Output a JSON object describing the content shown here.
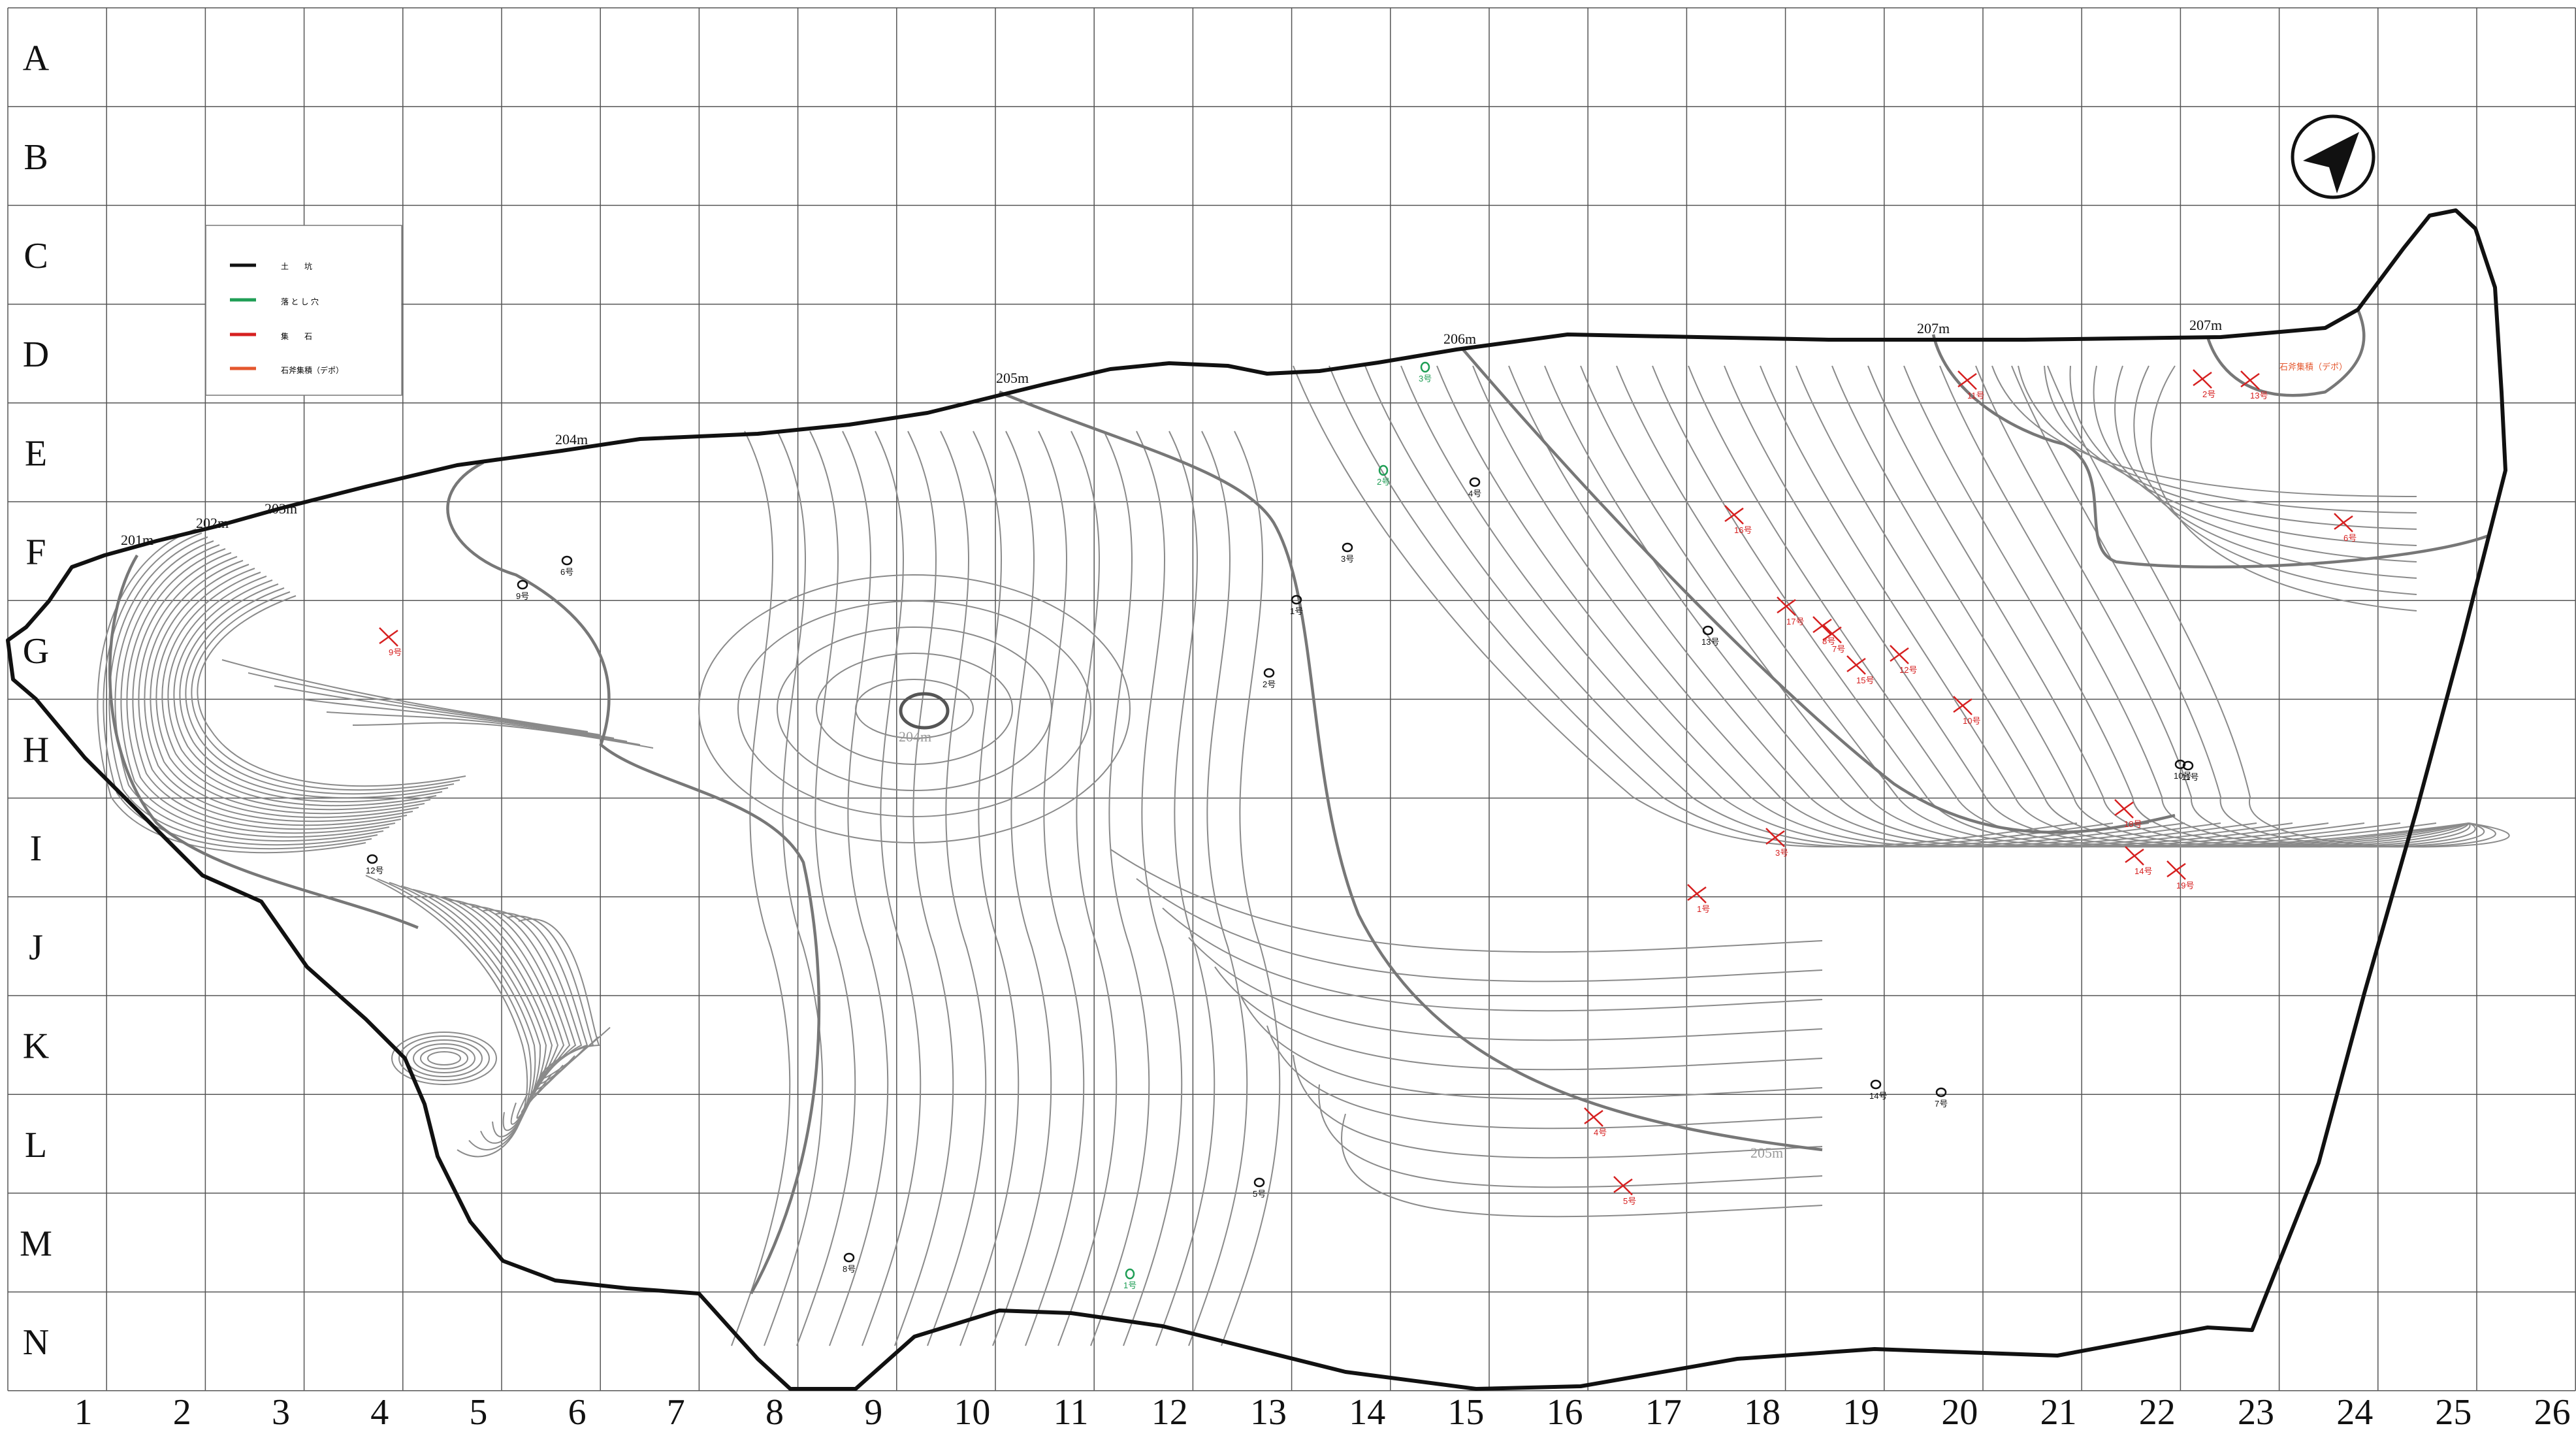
{
  "grid": {
    "rows": [
      "A",
      "B",
      "C",
      "D",
      "E",
      "F",
      "G",
      "H",
      "I",
      "J",
      "K",
      "L",
      "M",
      "N"
    ],
    "columns": [
      "1",
      "2",
      "3",
      "4",
      "5",
      "6",
      "7",
      "8",
      "9",
      "10",
      "11",
      "12",
      "13",
      "14",
      "15",
      "16",
      "17",
      "18",
      "19",
      "20",
      "21",
      "22",
      "23",
      "24",
      "25",
      "26"
    ]
  },
  "legend": {
    "items": [
      {
        "label": "土　　坑",
        "color": "#111111"
      },
      {
        "label": "落 と し 穴",
        "color": "#1f9e55"
      },
      {
        "label": "集　　石",
        "color": "#d62020"
      },
      {
        "label": "石斧集積（デポ）",
        "color": "#e4572e"
      }
    ]
  },
  "contour_labels": [
    "201m",
    "202m",
    "203m",
    "204m",
    "205m",
    "206m",
    "207m",
    "207m",
    "204m",
    "205m"
  ],
  "features": {
    "pits": [
      "1号",
      "2号",
      "3号",
      "4号",
      "5号",
      "6号",
      "7号",
      "8号",
      "9号",
      "10号",
      "11号",
      "12号",
      "13号",
      "14号"
    ],
    "pitfalls": [
      "1号",
      "2号",
      "3号"
    ],
    "stone_clusters": [
      "1号",
      "2号",
      "3号",
      "4号",
      "5号",
      "6号",
      "7号",
      "8号",
      "9号",
      "10号",
      "11号",
      "12号",
      "13号",
      "14号",
      "15号",
      "16号",
      "17号",
      "18号",
      "19号"
    ],
    "axe_deposit": "石斧集積（デポ）"
  },
  "north_arrow": {
    "icon": "north-arrow-icon"
  },
  "colors": {
    "pit": "#111111",
    "pitfall": "#1f9e55",
    "stone": "#d62020",
    "deposit": "#e4572e",
    "grid": "#555555",
    "contour": "#8a8a8a"
  }
}
